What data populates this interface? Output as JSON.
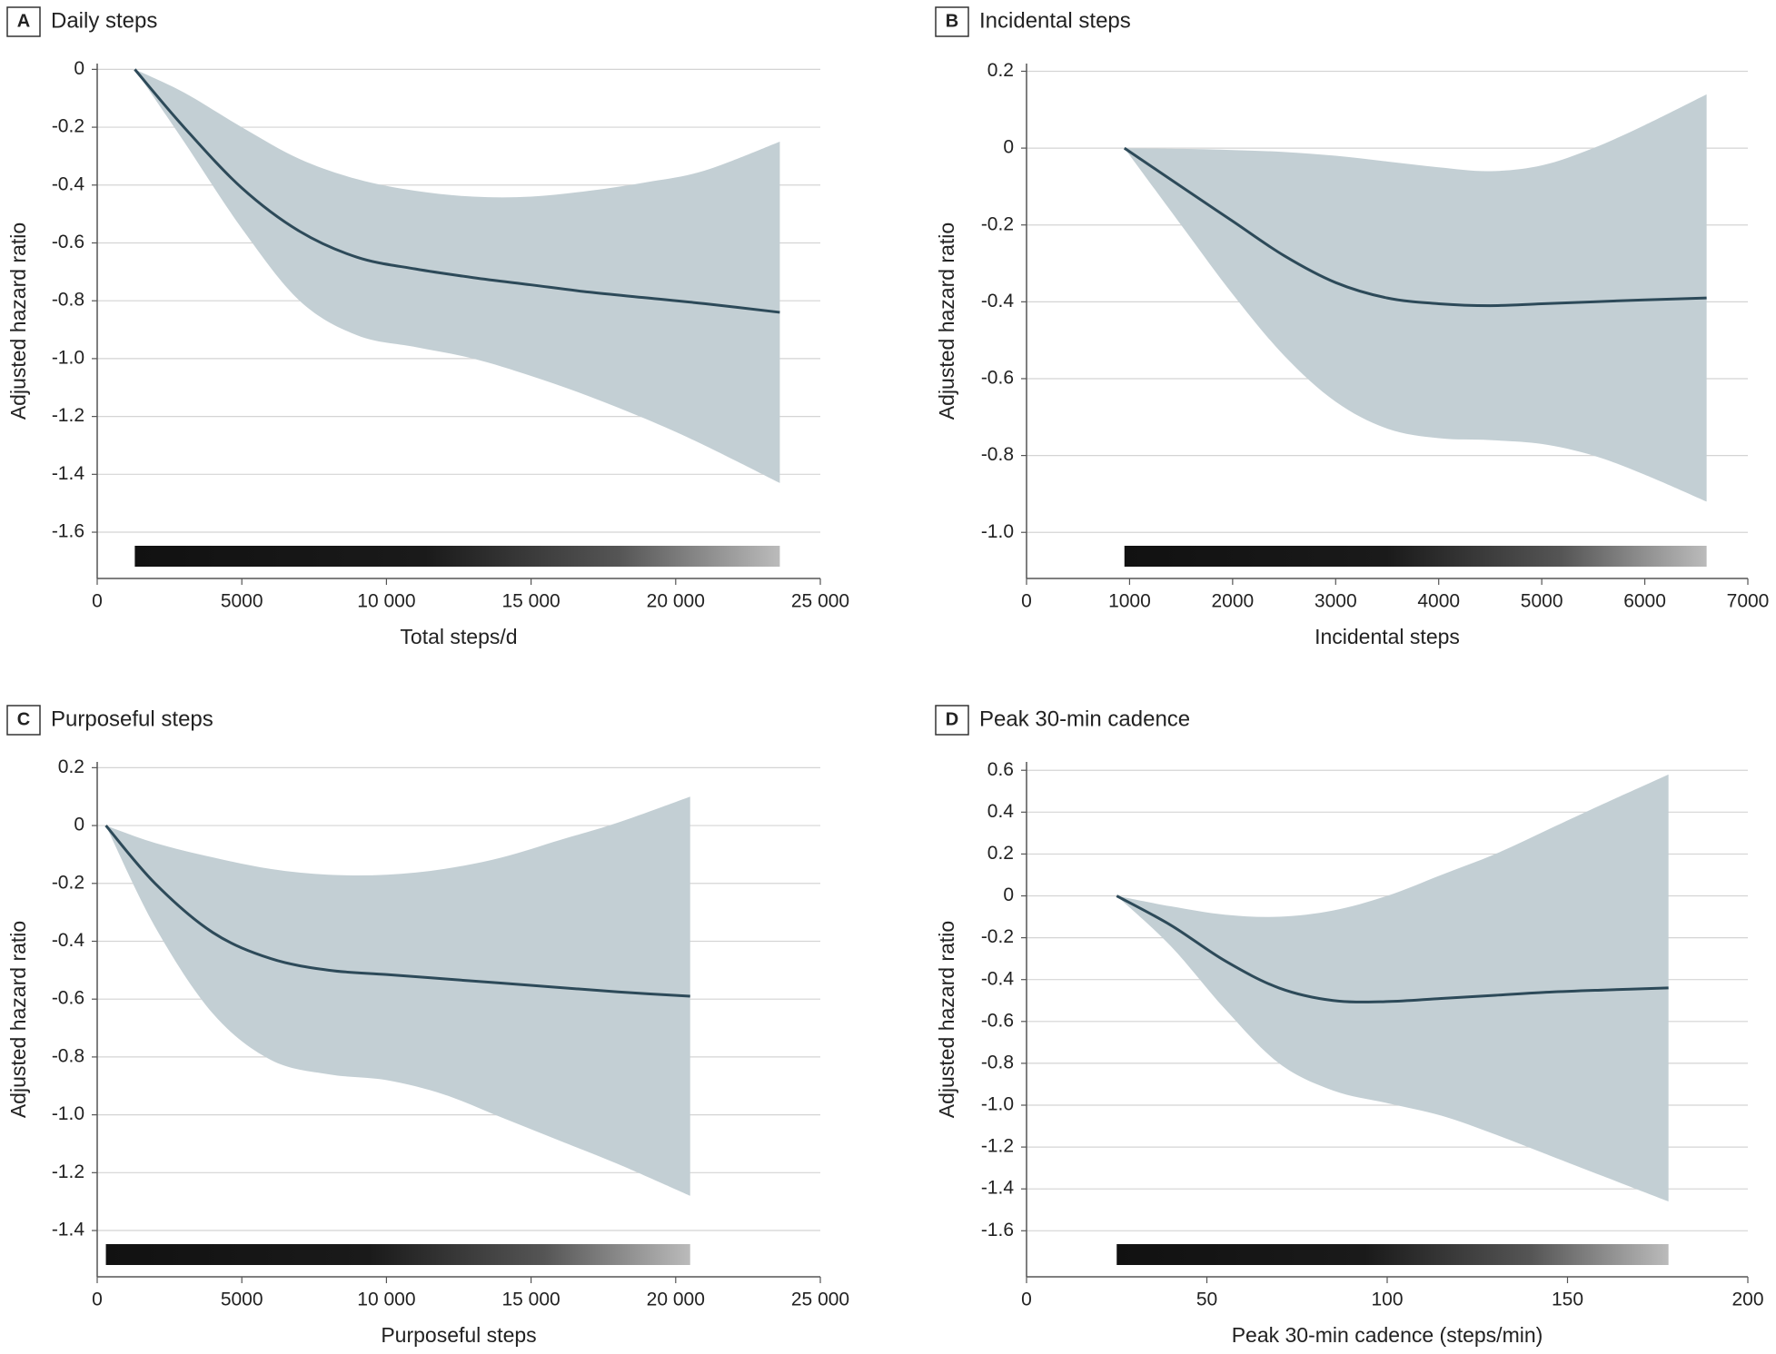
{
  "chart_data": [
    {
      "type": "line",
      "label": "A",
      "title": "Daily steps",
      "x_label": "Total steps/d",
      "y_label": "Adjusted hazard ratio",
      "x": [
        1300,
        3000,
        5000,
        7000,
        9000,
        11000,
        13000,
        15000,
        17000,
        19000,
        21000,
        23600
      ],
      "values": [
        0,
        -0.2,
        -0.41,
        -0.56,
        -0.65,
        -0.69,
        -0.72,
        -0.745,
        -0.77,
        -0.79,
        -0.81,
        -0.84
      ],
      "upper": [
        0,
        -0.08,
        -0.2,
        -0.31,
        -0.38,
        -0.42,
        -0.44,
        -0.44,
        -0.42,
        -0.39,
        -0.35,
        -0.25
      ],
      "lower": [
        0,
        -0.25,
        -0.55,
        -0.8,
        -0.92,
        -0.96,
        -1.0,
        -1.06,
        -1.13,
        -1.21,
        -1.3,
        -1.43
      ],
      "color": "#2d4a59",
      "band_color": "#c3cfd4",
      "xlim": [
        0,
        25000
      ],
      "xticks": [
        0,
        5000,
        {
          "value": 10000,
          "label": "10 000"
        },
        {
          "value": 15000,
          "label": "15 000"
        },
        {
          "value": 20000,
          "label": "20 000"
        },
        {
          "value": 25000,
          "label": "25 000"
        }
      ],
      "ylim": [
        -1.76,
        0.02
      ],
      "yticks": [
        0,
        -0.2,
        -0.4,
        -0.6,
        -0.8,
        {
          "value": -1,
          "label": "-1.0"
        },
        -1.2,
        -1.4,
        -1.6
      ],
      "grid": true
    },
    {
      "type": "line",
      "label": "B",
      "title": "Incidental steps",
      "x_label": "Incidental steps",
      "y_label": "Adjusted hazard ratio",
      "x": [
        950,
        1500,
        2000,
        2500,
        3000,
        3500,
        4000,
        4500,
        5000,
        5500,
        6000,
        6600
      ],
      "values": [
        0,
        -0.1,
        -0.19,
        -0.28,
        -0.35,
        -0.39,
        -0.405,
        -0.41,
        -0.405,
        -0.4,
        -0.395,
        -0.39
      ],
      "upper": [
        0,
        -0.002,
        -0.005,
        -0.01,
        -0.02,
        -0.035,
        -0.05,
        -0.06,
        -0.045,
        0,
        0.06,
        0.14
      ],
      "lower": [
        0,
        -0.2,
        -0.38,
        -0.54,
        -0.66,
        -0.73,
        -0.755,
        -0.76,
        -0.77,
        -0.8,
        -0.85,
        -0.92
      ],
      "color": "#2d4a59",
      "band_color": "#c3cfd4",
      "xlim": [
        0,
        7000
      ],
      "xticks": [
        0,
        1000,
        2000,
        3000,
        4000,
        5000,
        6000,
        7000
      ],
      "ylim": [
        -1.12,
        0.22
      ],
      "yticks": [
        0.2,
        0,
        -0.2,
        -0.4,
        -0.6,
        -0.8,
        {
          "value": -1,
          "label": "-1.0"
        }
      ],
      "grid": true
    },
    {
      "type": "line",
      "label": "C",
      "title": "Purposeful steps",
      "x_label": "Purposeful steps",
      "y_label": "Adjusted hazard ratio",
      "x": [
        300,
        2000,
        4000,
        6000,
        8000,
        10000,
        12000,
        14000,
        16000,
        18000,
        20500
      ],
      "values": [
        0,
        -0.2,
        -0.37,
        -0.46,
        -0.5,
        -0.515,
        -0.53,
        -0.545,
        -0.56,
        -0.575,
        -0.59
      ],
      "upper": [
        0,
        -0.06,
        -0.11,
        -0.15,
        -0.17,
        -0.17,
        -0.15,
        -0.11,
        -0.05,
        0.01,
        0.1
      ],
      "lower": [
        0,
        -0.35,
        -0.65,
        -0.81,
        -0.86,
        -0.88,
        -0.93,
        -1.01,
        -1.09,
        -1.17,
        -1.28
      ],
      "color": "#2d4a59",
      "band_color": "#c3cfd4",
      "xlim": [
        0,
        25000
      ],
      "xticks": [
        0,
        5000,
        {
          "value": 10000,
          "label": "10 000"
        },
        {
          "value": 15000,
          "label": "15 000"
        },
        {
          "value": 20000,
          "label": "20 000"
        },
        {
          "value": 25000,
          "label": "25 000"
        }
      ],
      "ylim": [
        -1.56,
        0.22
      ],
      "yticks": [
        0.2,
        0,
        -0.2,
        -0.4,
        -0.6,
        -0.8,
        {
          "value": -1,
          "label": "-1.0"
        },
        -1.2,
        -1.4
      ],
      "grid": true
    },
    {
      "type": "line",
      "label": "D",
      "title": "Peak 30-min cadence",
      "x_label": "Peak 30-min cadence (steps/min)",
      "y_label": "Adjusted hazard ratio",
      "x": [
        25,
        40,
        55,
        70,
        85,
        100,
        115,
        130,
        145,
        160,
        178
      ],
      "values": [
        0,
        -0.14,
        -0.31,
        -0.44,
        -0.5,
        -0.505,
        -0.49,
        -0.475,
        -0.46,
        -0.45,
        -0.44
      ],
      "upper": [
        0,
        -0.05,
        -0.09,
        -0.1,
        -0.07,
        0,
        0.1,
        0.2,
        0.32,
        0.44,
        0.58
      ],
      "lower": [
        0,
        -0.24,
        -0.54,
        -0.8,
        -0.93,
        -0.99,
        -1.05,
        -1.14,
        -1.24,
        -1.34,
        -1.46
      ],
      "color": "#2d4a59",
      "band_color": "#c3cfd4",
      "xlim": [
        0,
        200
      ],
      "xticks": [
        0,
        50,
        100,
        150,
        200
      ],
      "ylim": [
        -1.82,
        0.64
      ],
      "yticks": [
        0.6,
        0.4,
        0.2,
        0,
        -0.2,
        -0.4,
        -0.6,
        -0.8,
        {
          "value": -1,
          "label": "-1.0"
        },
        -1.2,
        -1.4,
        -1.6
      ],
      "grid": true
    }
  ]
}
